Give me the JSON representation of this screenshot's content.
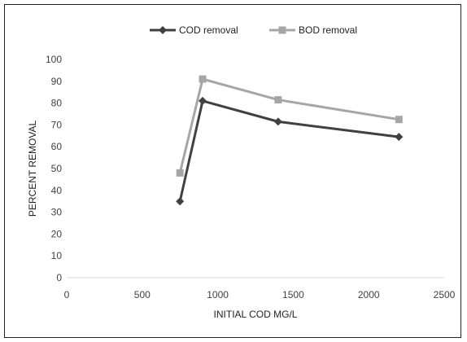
{
  "chart_data": {
    "type": "line",
    "title": "",
    "xlabel": "INITIAL COD MG/L",
    "ylabel": "PERCENT REMOVAL",
    "xlim": [
      0,
      2500
    ],
    "ylim": [
      0,
      100
    ],
    "xticks": [
      0,
      500,
      1000,
      1500,
      2000,
      2500
    ],
    "yticks": [
      0,
      10,
      20,
      30,
      40,
      50,
      60,
      70,
      80,
      90,
      100
    ],
    "grid": false,
    "legend_position": "top",
    "series": [
      {
        "name": "COD removal",
        "color": "#404040",
        "marker": "diamond",
        "x": [
          750,
          900,
          1400,
          2200
        ],
        "y": [
          35,
          81,
          71.5,
          64.5
        ]
      },
      {
        "name": "BOD removal",
        "color": "#A6A6A6",
        "marker": "square",
        "x": [
          750,
          900,
          1400,
          2200
        ],
        "y": [
          48,
          91,
          81.5,
          72.5
        ]
      }
    ]
  }
}
